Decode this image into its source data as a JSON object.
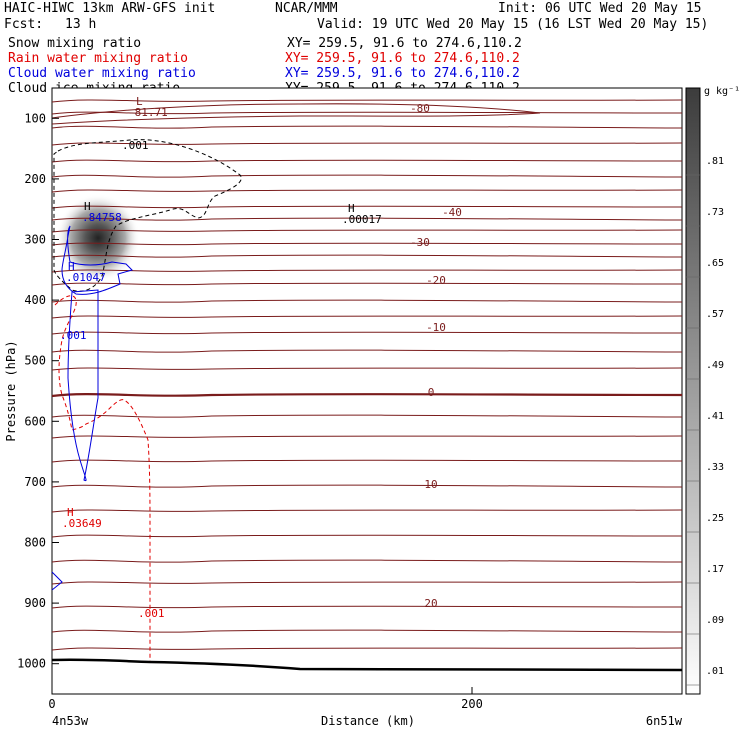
{
  "header": {
    "model": "HAIC-HIWC 13km ARW-GFS init",
    "org": "NCAR/MMM",
    "init": "Init: 06 UTC Wed 20 May 15",
    "fcst_label": "Fcst:",
    "fcst_value": "13 h",
    "valid": "Valid: 19 UTC Wed 20 May 15 (16 LST Wed 20 May 15)",
    "fields": [
      {
        "label": "Snow mixing ratio",
        "xy": "XY= 259.5, 91.6 to 274.6,110.2",
        "color": "#000000"
      },
      {
        "label": "Rain water mixing ratio",
        "xy": "XY= 259.5, 91.6 to 274.6,110.2",
        "color": "#e00000"
      },
      {
        "label": "Cloud water mixing ratio",
        "xy": "XY= 259.5, 91.6 to 274.6,110.2",
        "color": "#0000dd"
      },
      {
        "label": "Cloud ice mixing ratio",
        "xy": "XY= 259.5, 91.6 to 274.6,110.2",
        "color": "#000000"
      }
    ]
  },
  "chart_data": {
    "type": "contour",
    "xlabel": "Distance (km)",
    "ylabel": "Pressure (hPa)",
    "x_ticks": [
      0,
      200
    ],
    "xlim": [
      0,
      300
    ],
    "y_ticks": [
      100,
      200,
      300,
      400,
      500,
      600,
      700,
      800,
      900,
      1000
    ],
    "ylim": [
      1050,
      50
    ],
    "x_end_labels": {
      "left": "4n53w",
      "right": "6n51w"
    },
    "colorbar": {
      "unit": "g kg⁻¹",
      "levels": [
        ".01",
        ".09",
        ".17",
        ".25",
        ".33",
        ".41",
        ".49",
        ".57",
        ".65",
        ".73",
        ".81"
      ]
    },
    "temperature_contour_labels": [
      "-80",
      "-40",
      "-30",
      "-20",
      "-10",
      "0",
      "10",
      "20"
    ],
    "extrema": [
      {
        "type": "L",
        "value": "-81.71",
        "color": "#8b1a1a"
      },
      {
        "type": "H",
        "value": ".00017",
        "color": "#000000"
      },
      {
        "type": "H",
        "value": ".84758",
        "color": "#0000dd"
      },
      {
        "type": "H",
        "value": ".01047",
        "color": "#0000dd"
      },
      {
        "type": "H",
        "value": ".03649",
        "color": "#e00000"
      }
    ],
    "contour_labels": [
      {
        "value": ".001",
        "color": "#000000"
      },
      {
        "value": ".001",
        "color": "#0000dd"
      },
      {
        "value": ".001",
        "color": "#e00000"
      }
    ],
    "colors": {
      "isotherm": "#7a1c1c",
      "terrain": "#000000"
    }
  }
}
